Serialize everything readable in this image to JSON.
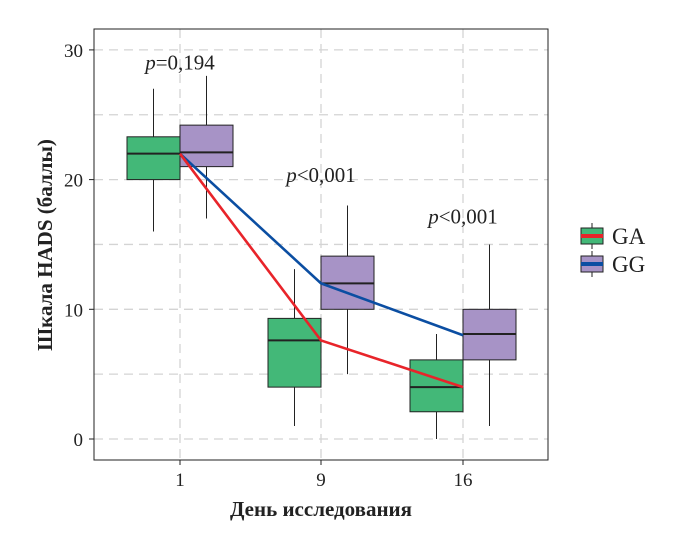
{
  "chart_data": {
    "type": "boxplot",
    "xlabel": "День исследования",
    "ylabel": "Шкала HADS (баллы)",
    "categories": [
      "1",
      "9",
      "16"
    ],
    "ylim": [
      -1.5,
      32
    ],
    "yticks": [
      0,
      10,
      20,
      30
    ],
    "ytick_labels": [
      "0",
      "10",
      "20",
      "30"
    ],
    "grid": true,
    "legend_position": "right",
    "series": [
      {
        "name": "GA",
        "fill": "#43b878",
        "line_color": "#e8242a",
        "boxes": [
          {
            "min": 16,
            "q1": 20,
            "median": 22,
            "q3": 23.3,
            "max": 27
          },
          {
            "min": 1,
            "q1": 4,
            "median": 7.6,
            "q3": 9.3,
            "max": 13.1
          },
          {
            "min": 0,
            "q1": 2.1,
            "median": 4,
            "q3": 6.1,
            "max": 8.1
          }
        ],
        "line_values": [
          22,
          7.6,
          4
        ]
      },
      {
        "name": "GG",
        "fill": "#a793c6",
        "line_color": "#0b4ea2",
        "boxes": [
          {
            "min": 17,
            "q1": 21,
            "median": 22.1,
            "q3": 24.2,
            "max": 28
          },
          {
            "min": 5,
            "q1": 10,
            "median": 12,
            "q3": 14.1,
            "max": 18
          },
          {
            "min": 1,
            "q1": 6.1,
            "median": 8.1,
            "q3": 10,
            "max": 15
          }
        ],
        "line_values": [
          22,
          12,
          8
        ]
      }
    ],
    "annotations": [
      {
        "category": "1",
        "p": "p",
        "text": "=0,194",
        "y": 28.5
      },
      {
        "category": "9",
        "p": "p",
        "text": "<0,001",
        "y": 19.8
      },
      {
        "category": "16",
        "p": "p",
        "text": "<0,001",
        "y": 16.6
      }
    ]
  }
}
